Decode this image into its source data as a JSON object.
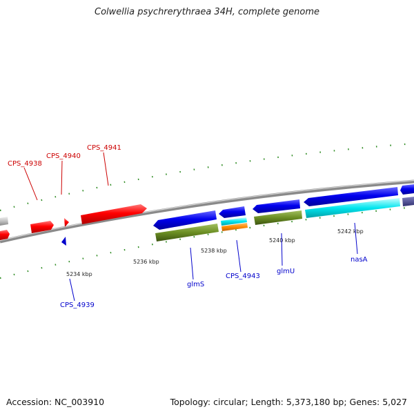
{
  "title": "Colwellia psychrerythraea 34H, complete genome",
  "footer": {
    "accession": "Accession: NC_003910",
    "summary": "Topology: circular; Length: 5,373,180 bp; Genes: 5,027"
  },
  "colors": {
    "backbone": "#8a8a8a",
    "forward_cds": "#ff0000",
    "plus_strand": "#0000ee",
    "rna_olive": "#6b8e23",
    "cyan_feature": "#00e5ee",
    "orange_feature": "#ff8c00",
    "grey_feature": "#c0c0c0",
    "tick_green": "#2e8b22",
    "label_red": "#cc0000",
    "label_blue": "#0000cc"
  },
  "scale_labels": [
    "5234 kbp",
    "5236 kbp",
    "5238 kbp",
    "5240 kbp",
    "5242 kbp"
  ],
  "gene_labels": {
    "top": [
      "CPS_4938",
      "CPS_4940",
      "CPS_4941"
    ],
    "bottom": [
      "CPS_4939",
      "glmS",
      "CPS_4943",
      "glmU",
      "nasA"
    ]
  }
}
